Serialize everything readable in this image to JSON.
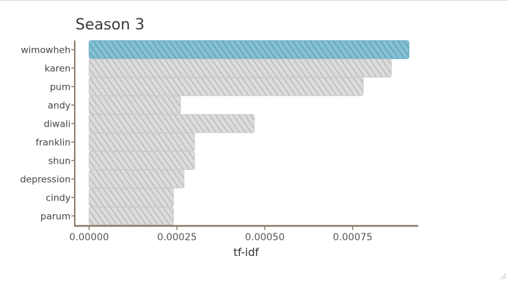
{
  "chart_data": {
    "type": "bar",
    "orientation": "horizontal",
    "title": "Season 3",
    "xlabel": "tf-idf",
    "ylabel": "",
    "categories": [
      "wimowheh",
      "karen",
      "pum",
      "andy",
      "diwali",
      "franklin",
      "shun",
      "depression",
      "cindy",
      "parum"
    ],
    "values": [
      0.00091,
      0.00086,
      0.00078,
      0.00026,
      0.00047,
      0.0003,
      0.0003,
      0.00027,
      0.00024,
      0.00024
    ],
    "xlim": [
      0,
      0.00095
    ],
    "xticks": [
      0,
      0.00025,
      0.0005,
      0.00075
    ],
    "xtick_labels": [
      "0.00000",
      "0.00025",
      "0.00050",
      "0.00075"
    ],
    "highlight_category": "wimowheh",
    "grid": false,
    "colors": {
      "highlight": "#6aaec6",
      "default": "#c9c9c9",
      "axis": "#8b7763"
    }
  }
}
